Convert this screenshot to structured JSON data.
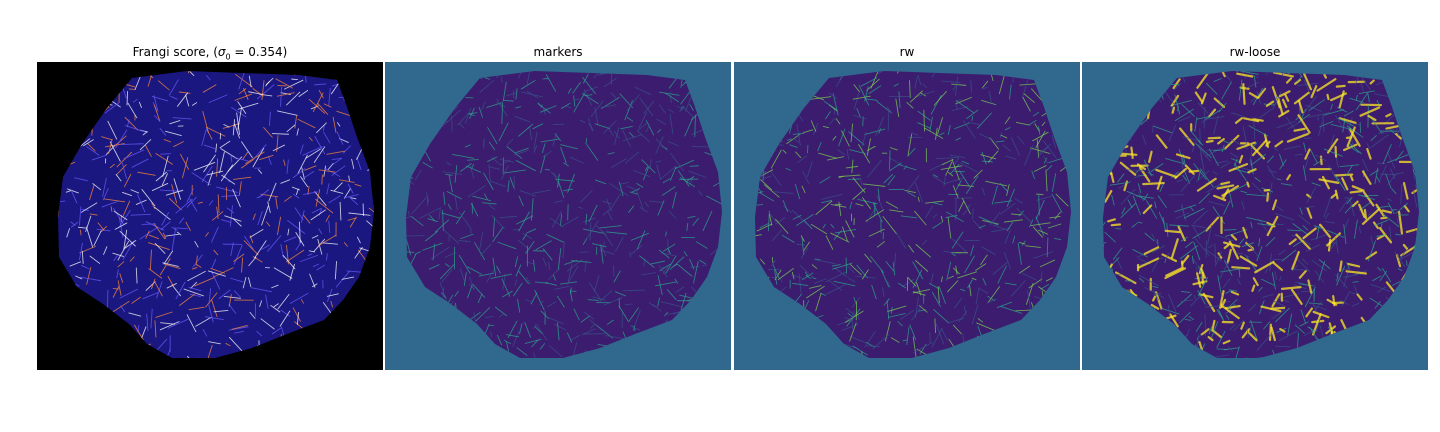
{
  "panels": [
    {
      "id": "frangi",
      "title_prefix": "Frangi score, (",
      "title_symbol": "σ",
      "title_subscript": "0",
      "title_suffix": " = 0.354)",
      "colormap": "gnuplot2",
      "background": "#000000",
      "tissue_color": "#1a1780",
      "accent_colors": [
        "#6a5cff",
        "#ff8a3a",
        "#ffffff"
      ]
    },
    {
      "id": "markers",
      "title": "markers",
      "colormap": "viridis",
      "background": "#31688e",
      "tissue_color": "#3b1c6e",
      "accent_colors": [
        "#2ca58d",
        "#3b528b"
      ]
    },
    {
      "id": "rw",
      "title": "rw",
      "colormap": "viridis",
      "background": "#31688e",
      "tissue_color": "#3b1c6e",
      "accent_colors": [
        "#2ca58d",
        "#7ad151",
        "#3b528b"
      ]
    },
    {
      "id": "rw-loose",
      "title": "rw-loose",
      "colormap": "viridis",
      "background": "#31688e",
      "tissue_color": "#3b1c6e",
      "accent_colors": [
        "#fde725",
        "#2ca58d",
        "#3b528b"
      ]
    }
  ]
}
